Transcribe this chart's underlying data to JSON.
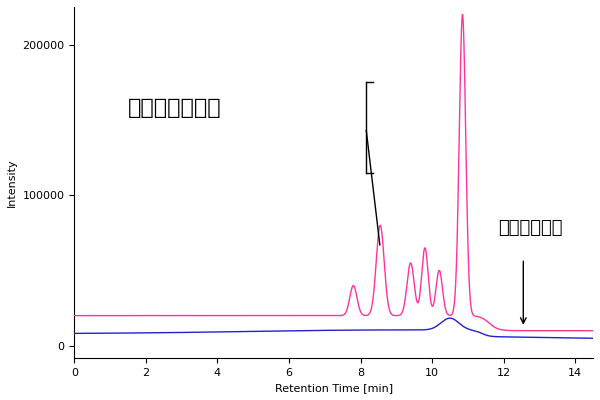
{
  "title": "",
  "xlabel": "Retention Time [min]",
  "ylabel": "Intensity",
  "xlim": [
    0.0,
    14.5
  ],
  "ylim": [
    -8000,
    225000
  ],
  "yticks": [
    0,
    100000,
    200000
  ],
  "xticks": [
    0.0,
    2.0,
    4.0,
    6.0,
    8.0,
    10.0,
    12.0,
    14.0
  ],
  "pink_color": "#FF3399",
  "blue_color": "#2222CC",
  "annotation_ghost": "ゴーストピーク",
  "annotation_baseline": "ベースライン",
  "background_color": "#ffffff"
}
